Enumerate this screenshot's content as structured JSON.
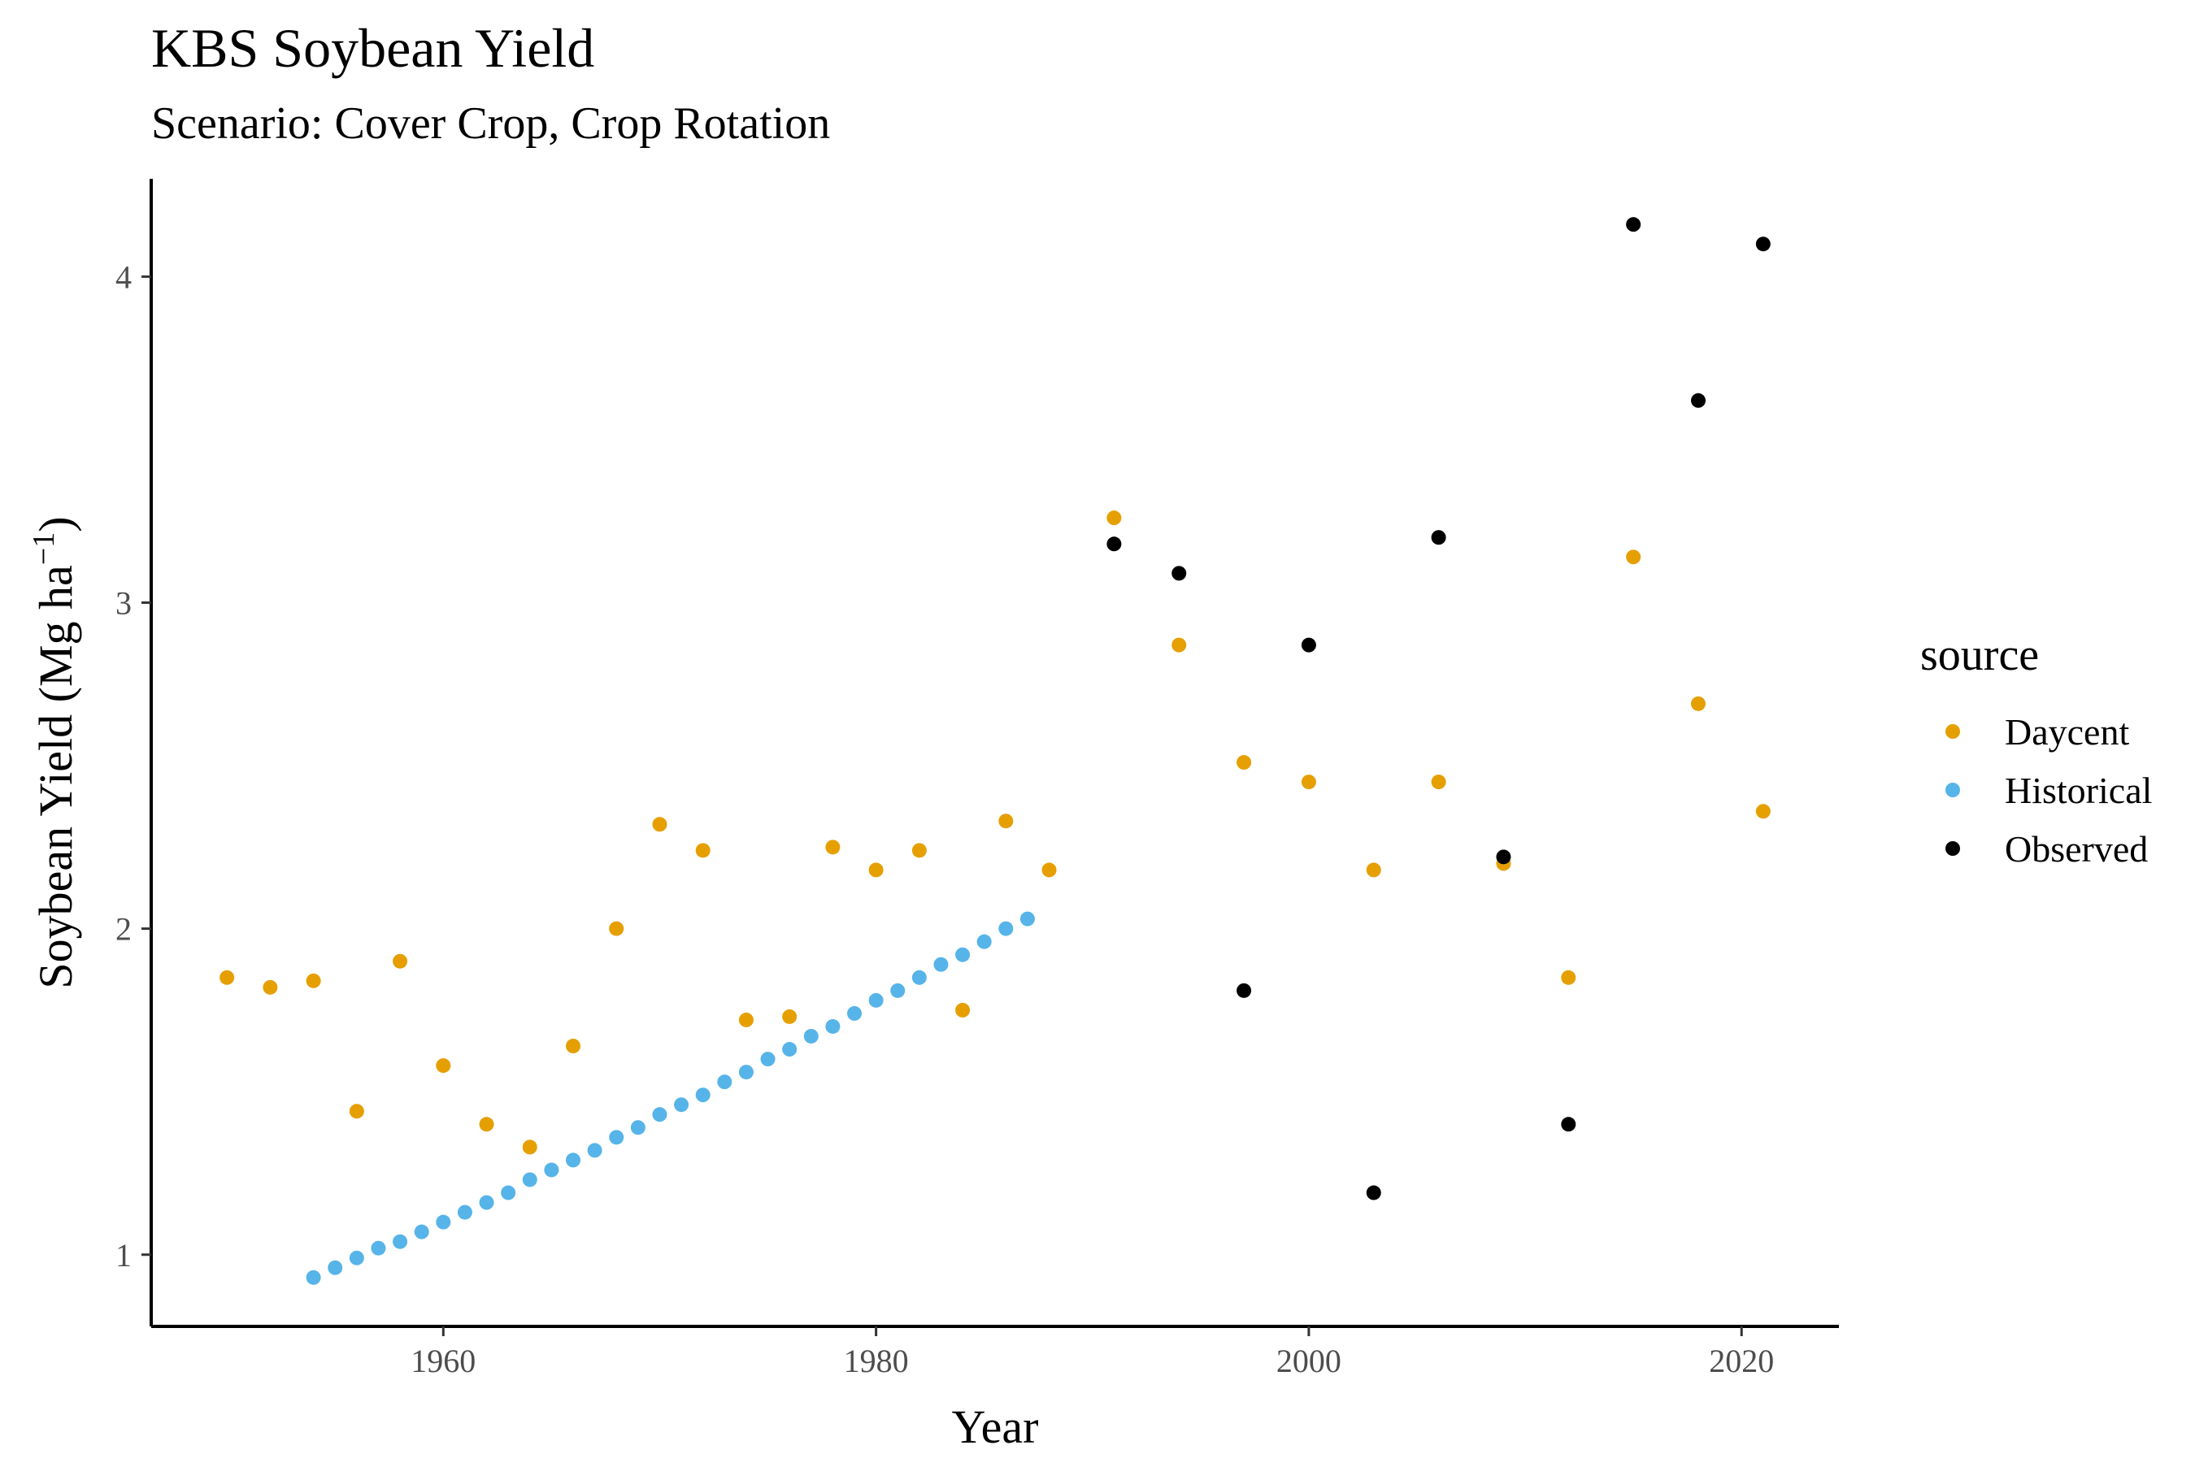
{
  "chart_data": {
    "type": "scatter",
    "title": "KBS Soybean Yield",
    "subtitle": "Scenario: Cover Crop, Crop Rotation",
    "xlabel": "Year",
    "ylabel_text": "Soybean Yield (Mg ha",
    "ylabel_sup": "−1",
    "ylabel_close": ")",
    "xlim": [
      1946.5,
      2024.5
    ],
    "ylim": [
      0.78,
      4.3
    ],
    "xticks": [
      1960,
      1980,
      2000,
      2020
    ],
    "yticks": [
      1,
      2,
      3,
      4
    ],
    "grid": false,
    "legend": {
      "title": "source",
      "placement": "right"
    },
    "series": [
      {
        "name": "Daycent",
        "color": "#E69F00",
        "points": [
          [
            1950,
            1.85
          ],
          [
            1952,
            1.82
          ],
          [
            1954,
            1.84
          ],
          [
            1956,
            1.44
          ],
          [
            1958,
            1.9
          ],
          [
            1960,
            1.58
          ],
          [
            1962,
            1.4
          ],
          [
            1964,
            1.33
          ],
          [
            1966,
            1.64
          ],
          [
            1968,
            2.0
          ],
          [
            1970,
            2.32
          ],
          [
            1972,
            2.24
          ],
          [
            1974,
            1.72
          ],
          [
            1976,
            1.73
          ],
          [
            1978,
            2.25
          ],
          [
            1980,
            2.18
          ],
          [
            1982,
            2.24
          ],
          [
            1984,
            1.75
          ],
          [
            1986,
            2.33
          ],
          [
            1988,
            2.18
          ],
          [
            1991,
            3.26
          ],
          [
            1994,
            2.87
          ],
          [
            1997,
            2.51
          ],
          [
            2000,
            2.45
          ],
          [
            2003,
            2.18
          ],
          [
            2006,
            2.45
          ],
          [
            2009,
            2.2
          ],
          [
            2012,
            1.85
          ],
          [
            2015,
            3.14
          ],
          [
            2018,
            2.69
          ],
          [
            2021,
            2.36
          ]
        ]
      },
      {
        "name": "Historical",
        "color": "#56B4E9",
        "points": [
          [
            1954,
            0.93
          ],
          [
            1955,
            0.96
          ],
          [
            1956,
            0.99
          ],
          [
            1957,
            1.02
          ],
          [
            1958,
            1.04
          ],
          [
            1959,
            1.07
          ],
          [
            1960,
            1.1
          ],
          [
            1961,
            1.13
          ],
          [
            1962,
            1.16
          ],
          [
            1963,
            1.19
          ],
          [
            1964,
            1.23
          ],
          [
            1965,
            1.26
          ],
          [
            1966,
            1.29
          ],
          [
            1967,
            1.32
          ],
          [
            1968,
            1.36
          ],
          [
            1969,
            1.39
          ],
          [
            1970,
            1.43
          ],
          [
            1971,
            1.46
          ],
          [
            1972,
            1.49
          ],
          [
            1973,
            1.53
          ],
          [
            1974,
            1.56
          ],
          [
            1975,
            1.6
          ],
          [
            1976,
            1.63
          ],
          [
            1977,
            1.67
          ],
          [
            1978,
            1.7
          ],
          [
            1979,
            1.74
          ],
          [
            1980,
            1.78
          ],
          [
            1981,
            1.81
          ],
          [
            1982,
            1.85
          ],
          [
            1983,
            1.89
          ],
          [
            1984,
            1.92
          ],
          [
            1985,
            1.96
          ],
          [
            1986,
            2.0
          ],
          [
            1987,
            2.03
          ]
        ]
      },
      {
        "name": "Observed",
        "color": "#000000",
        "points": [
          [
            1991,
            3.18
          ],
          [
            1994,
            3.09
          ],
          [
            1997,
            1.81
          ],
          [
            2000,
            2.87
          ],
          [
            2003,
            1.19
          ],
          [
            2006,
            3.2
          ],
          [
            2009,
            2.22
          ],
          [
            2012,
            1.4
          ],
          [
            2015,
            4.16
          ],
          [
            2018,
            3.62
          ],
          [
            2021,
            4.1
          ]
        ]
      }
    ]
  }
}
